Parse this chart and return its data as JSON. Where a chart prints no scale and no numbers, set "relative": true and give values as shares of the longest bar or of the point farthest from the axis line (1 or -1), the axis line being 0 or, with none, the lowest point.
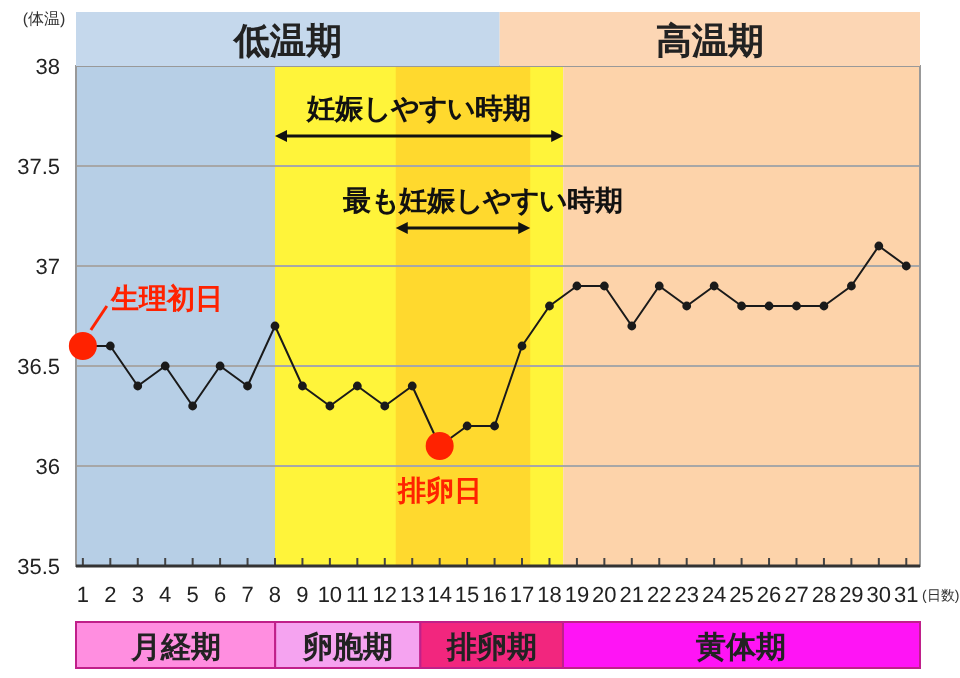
{
  "chart_data": [
    {
      "type": "bar",
      "orientation": "horizontal",
      "stacked": true,
      "relative": true,
      "categories": [
        null
      ],
      "series": [
        {
          "name": "低温期",
          "color": "#c5d8ec",
          "values": [
            0.502
          ]
        },
        {
          "name": "高温期",
          "color": "#fcd6b4",
          "values": [
            0.498
          ]
        }
      ]
    },
    {
      "type": "line",
      "xlabel": "(日数)",
      "ylabel": "(体温)",
      "x": [
        1,
        2,
        3,
        4,
        5,
        6,
        7,
        8,
        9,
        10,
        11,
        12,
        13,
        14,
        15,
        16,
        17,
        18,
        19,
        20,
        21,
        22,
        23,
        24,
        25,
        26,
        27,
        28,
        29,
        30,
        31
      ],
      "series": [
        {
          "type": "line",
          "color": "#1a1a1a",
          "values": [
            36.6,
            36.6,
            36.4,
            36.5,
            36.3,
            36.5,
            36.4,
            36.7,
            36.4,
            36.3,
            36.4,
            36.3,
            36.4,
            36.1,
            36.2,
            36.2,
            36.6,
            36.8,
            36.9,
            36.9,
            36.7,
            36.9,
            36.8,
            36.9,
            36.8,
            36.8,
            36.8,
            36.8,
            36.9,
            37.1,
            37.0
          ]
        },
        {
          "type": "scatter",
          "color": "#ff2200",
          "values": [
            36.6,
            null,
            null,
            null,
            null,
            null,
            null,
            null,
            null,
            null,
            null,
            null,
            null,
            36.1,
            null,
            null,
            null,
            null,
            null,
            null,
            null,
            null,
            null,
            null,
            null,
            null,
            null,
            null,
            null,
            null,
            null
          ]
        }
      ],
      "marker": "circle",
      "line_style": "solid",
      "xlim": [
        0.75,
        31.5
      ],
      "ylim": [
        35.5,
        38
      ],
      "xticks": [
        1,
        2,
        3,
        4,
        5,
        6,
        7,
        8,
        9,
        10,
        11,
        12,
        13,
        14,
        15,
        16,
        17,
        18,
        19,
        20,
        21,
        22,
        23,
        24,
        25,
        26,
        27,
        28,
        29,
        30,
        31
      ],
      "yticks": [
        35.5,
        36,
        36.5,
        37,
        37.5,
        38
      ],
      "grid": "y",
      "bands": [
        {
          "axis": "x",
          "from": 0.75,
          "to": 8,
          "color": "#b7cfe6"
        },
        {
          "axis": "x",
          "from": 8,
          "to": 18.5,
          "color": "#fff43a",
          "label": "妊娠しやすい時期"
        },
        {
          "axis": "x",
          "from": 12.4,
          "to": 17.3,
          "color": "#ffd92e",
          "label": "最も妊娠しやすい時期"
        },
        {
          "axis": "x",
          "from": 18.5,
          "to": 31.5,
          "color": "#fdd3aa"
        }
      ],
      "annotations": [
        {
          "text": "生理初日",
          "x": 1,
          "y": 36.6
        },
        {
          "text": "排卵日",
          "x": 14,
          "y": 36.1
        }
      ]
    },
    {
      "type": "bar",
      "orientation": "horizontal",
      "stacked": true,
      "relative": true,
      "categories": [
        null
      ],
      "series": [
        {
          "name": "月経期",
          "color": "#ff8ee0",
          "values": [
            0.236
          ]
        },
        {
          "name": "卵胞期",
          "color": "#f5a3f0",
          "values": [
            0.172
          ]
        },
        {
          "name": "排卵期",
          "color": "#f2267e",
          "values": [
            0.169
          ]
        },
        {
          "name": "黄体期",
          "color": "#ff14f5",
          "values": [
            0.423
          ]
        }
      ]
    }
  ]
}
